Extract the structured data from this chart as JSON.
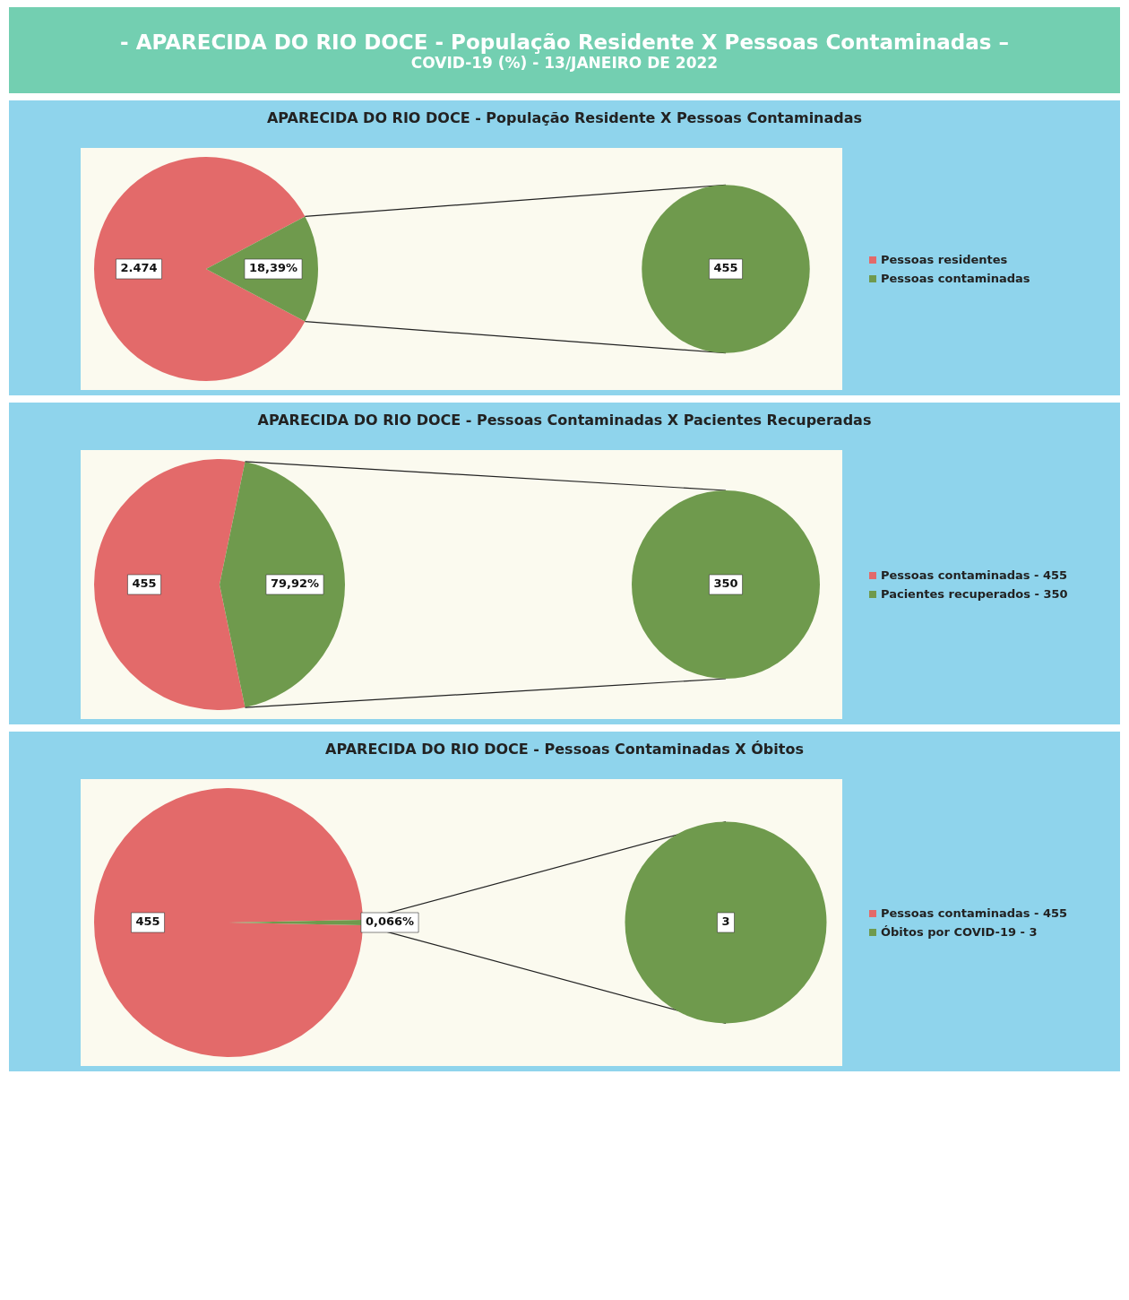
{
  "chart_data": [
    {
      "type": "other",
      "title": "- APARECIDA DO RIO DOCE - População Residente X Pessoas Contaminadas –",
      "subtitle": "COVID-19 (%) - 13/JANEIRO DE 2022"
    },
    {
      "type": "pie",
      "title": "APARECIDA DO RIO DOCE - População Residente  X Pessoas Contaminadas",
      "categories": [
        "Pessoas residentes",
        "Pessoas contaminadas"
      ],
      "values": [
        2474,
        455
      ],
      "colors": [
        "#e36a6a",
        "#6f9a4d"
      ],
      "value_labels": [
        "2.474",
        null
      ],
      "annotations": [
        {
          "text": "18,39%",
          "x": "Pessoas contaminadas"
        },
        "455"
      ],
      "legend": "right"
    },
    {
      "type": "pie",
      "title": "APARECIDA DO RIO DOCE - Pessoas Contaminadas X Pacientes Recuperadas",
      "categories": [
        "Pessoas contaminadas - 455",
        "Pacientes recuperados - 350"
      ],
      "values": [
        455,
        350
      ],
      "colors": [
        "#e36a6a",
        "#6f9a4d"
      ],
      "value_labels": [
        "455",
        null
      ],
      "annotations": [
        {
          "text": "79,92%",
          "x": "Pacientes recuperados - 350"
        },
        "350"
      ],
      "legend": "right"
    },
    {
      "type": "pie",
      "title": "APARECIDA DO RIO DOCE - Pessoas Contaminadas X Óbitos",
      "categories": [
        "Pessoas contaminadas - 455",
        "Óbitos por COVID-19 - 3"
      ],
      "values": [
        455,
        3
      ],
      "colors": [
        "#e36a6a",
        "#6f9a4d"
      ],
      "value_labels": [
        "455",
        null
      ],
      "annotations": [
        {
          "text": "0,066%",
          "x": "Óbitos por COVID-19 - 3"
        },
        "3"
      ],
      "legend": "right"
    }
  ]
}
